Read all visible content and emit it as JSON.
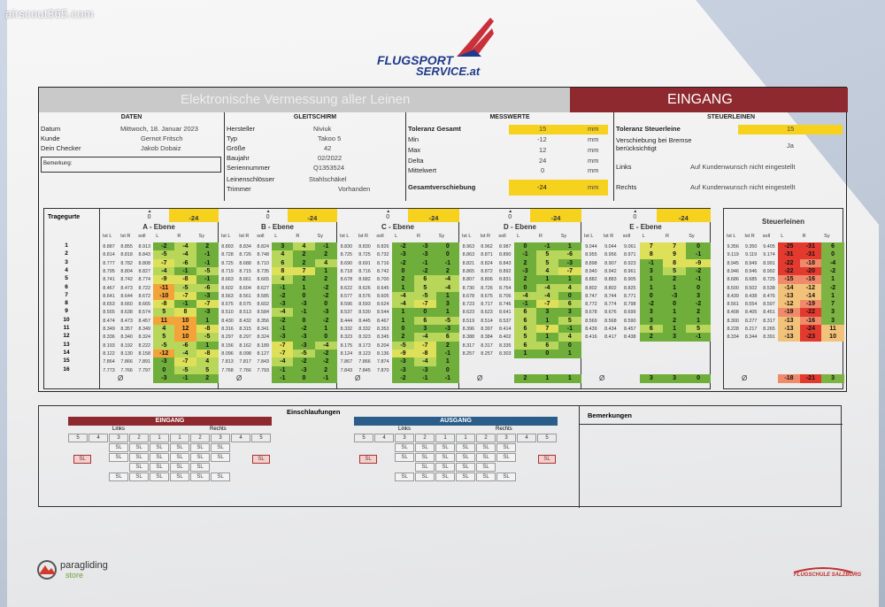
{
  "watermark": "airscout365.com",
  "logo": {
    "line1": "FLUGSPORT",
    "line2": "SERVICE.at"
  },
  "title": {
    "left": "Elektronische Vermessung aller Leinen",
    "right": "EINGANG"
  },
  "daten": {
    "header": "DATEN",
    "datum_label": "Datum",
    "datum": "Mittwoch, 18. Januar 2023",
    "kunde_label": "Kunde",
    "kunde": "Gernot Fritsch",
    "checker_label": "Dein Checker",
    "checker": "Jakob Dobaiz",
    "bemerkung_label": "Bemerkung:"
  },
  "gleitschirm": {
    "header": "GLEITSCHIRM",
    "hersteller_label": "Hersteller",
    "hersteller": "Niviuk",
    "typ_label": "Typ",
    "typ": "Takoo 5",
    "groesse_label": "Größe",
    "groesse": "42",
    "baujahr_label": "Baujahr",
    "baujahr": "02/2022",
    "serien_label": "Seriennummer",
    "serien": "Q1353524",
    "leinen_label": "Leinenschlösser",
    "leinen": "Stahlschäkel",
    "trimmer_label": "Trimmer",
    "trimmer": "Vorhanden"
  },
  "messwerte": {
    "header": "MESSWERTE",
    "toleranz_label": "Toleranz Gesamt",
    "toleranz": "15",
    "unit": "mm",
    "min_label": "Min",
    "min": "-12",
    "max_label": "Max",
    "max": "12",
    "delta_label": "Delta",
    "delta": "24",
    "mittel_label": "Mittelwert",
    "mittel": "0",
    "gesamt_label": "Gesamtverschiebung",
    "gesamt": "-24"
  },
  "steuerleinen_info": {
    "header": "STEUERLEINEN",
    "toleranz_label": "Toleranz Steuerleine",
    "toleranz": "15",
    "verschiebung_label": "Verschiebung bei Bremse berücksichtigt",
    "verschiebung": "Ja",
    "links_label": "Links",
    "links": "Auf Kundenwunsch nicht eingestellt",
    "rechts_label": "Rechts",
    "rechts": "Auf Kundenwunsch nicht eingestellt"
  },
  "tragegurte_label": "Tragegurte",
  "sub_headers": [
    "Ist L",
    "Ist R",
    "soll",
    "L",
    "R",
    "Sy"
  ],
  "ebenen": [
    {
      "name": "A - Ebene",
      "top_zero": "0",
      "top_val": "-24",
      "sum": [
        "-3",
        "-1",
        "2"
      ],
      "rows": [
        [
          "8.887",
          "8.855",
          "8.913",
          "-2",
          "-4",
          "2"
        ],
        [
          "8.814",
          "8.818",
          "8.843",
          "-5",
          "-4",
          "-1"
        ],
        [
          "8.777",
          "8.782",
          "8.808",
          "-7",
          "-6",
          "-1"
        ],
        [
          "8.795",
          "8.804",
          "8.827",
          "-4",
          "-1",
          "-5"
        ],
        [
          "8.741",
          "8.742",
          "8.774",
          "-9",
          "-8",
          "-1"
        ],
        [
          "8.467",
          "8.473",
          "8.722",
          "-11",
          "-5",
          "-6"
        ],
        [
          "8.641",
          "8.644",
          "8.672",
          "-10",
          "-7",
          "-3"
        ],
        [
          "8.653",
          "8.660",
          "8.665",
          "-8",
          "-1",
          "-7"
        ],
        [
          "8.555",
          "8.638",
          "8.574",
          "5",
          "8",
          "-3"
        ],
        [
          "8.474",
          "8.473",
          "8.457",
          "11",
          "10",
          "1"
        ],
        [
          "8.349",
          "8.357",
          "8.349",
          "4",
          "12",
          "-8"
        ],
        [
          "8.336",
          "8.340",
          "8.324",
          "5",
          "10",
          "-5"
        ],
        [
          "8.193",
          "8.192",
          "8.222",
          "-5",
          "-6",
          "1"
        ],
        [
          "8.122",
          "8.130",
          "8.158",
          "-12",
          "-4",
          "-8"
        ],
        [
          "7.864",
          "7.866",
          "7.891",
          "-3",
          "-7",
          "4"
        ],
        [
          "7.773",
          "7.766",
          "7.797",
          "0",
          "-5",
          "5"
        ]
      ]
    },
    {
      "name": "B - Ebene",
      "top_zero": "0",
      "top_val": "-24",
      "sum": [
        "-1",
        "0",
        "-1"
      ],
      "rows": [
        [
          "8.893",
          "8.834",
          "8.824",
          "3",
          "4",
          "-1"
        ],
        [
          "8.728",
          "8.726",
          "8.748",
          "4",
          "2",
          "2"
        ],
        [
          "8.725",
          "8.688",
          "8.710",
          "6",
          "2",
          "4"
        ],
        [
          "8.719",
          "8.715",
          "8.735",
          "8",
          "7",
          "1"
        ],
        [
          "8.663",
          "8.661",
          "8.665",
          "4",
          "2",
          "2"
        ],
        [
          "8.602",
          "8.604",
          "8.627",
          "-1",
          "1",
          "-2"
        ],
        [
          "8.563",
          "8.561",
          "8.585",
          "-2",
          "0",
          "-2"
        ],
        [
          "8.575",
          "8.575",
          "8.602",
          "-3",
          "-3",
          "0"
        ],
        [
          "8.510",
          "8.513",
          "8.584",
          "-4",
          "-1",
          "-3"
        ],
        [
          "8.430",
          "8.432",
          "8.356",
          "-2",
          "0",
          "-2"
        ],
        [
          "8.316",
          "8.315",
          "8.341",
          "-1",
          "-2",
          "1"
        ],
        [
          "8.297",
          "8.297",
          "8.324",
          "-3",
          "-3",
          "0"
        ],
        [
          "8.156",
          "8.162",
          "8.189",
          "-7",
          "-3",
          "-4"
        ],
        [
          "8.096",
          "8.098",
          "8.127",
          "-7",
          "-5",
          "-2"
        ],
        [
          "7.813",
          "7.817",
          "7.843",
          "-4",
          "-2",
          "-2"
        ],
        [
          "7.768",
          "7.766",
          "7.793",
          "-1",
          "-3",
          "2"
        ]
      ]
    },
    {
      "name": "C - Ebene",
      "top_zero": "0",
      "top_val": "-24",
      "sum": [
        "-2",
        "-1",
        "-1"
      ],
      "rows": [
        [
          "8.830",
          "8.830",
          "8.826",
          "-2",
          "-3",
          "0"
        ],
        [
          "8.725",
          "8.725",
          "8.732",
          "-3",
          "-3",
          "0"
        ],
        [
          "8.690",
          "8.691",
          "8.716",
          "-2",
          "-1",
          "-1"
        ],
        [
          "8.718",
          "8.716",
          "8.742",
          "0",
          "-2",
          "2"
        ],
        [
          "8.678",
          "8.682",
          "8.700",
          "2",
          "6",
          "-4"
        ],
        [
          "8.622",
          "8.626",
          "8.645",
          "1",
          "5",
          "-4"
        ],
        [
          "8.577",
          "8.576",
          "8.605",
          "-4",
          "-5",
          "1"
        ],
        [
          "8.596",
          "8.593",
          "8.624",
          "-4",
          "-7",
          "3"
        ],
        [
          "8.537",
          "8.530",
          "8.544",
          "1",
          "0",
          "1"
        ],
        [
          "8.444",
          "8.445",
          "8.467",
          "1",
          "6",
          "-5"
        ],
        [
          "8.332",
          "8.332",
          "8.353",
          "0",
          "3",
          "-3"
        ],
        [
          "8.323",
          "8.323",
          "8.345",
          "2",
          "-4",
          "6"
        ],
        [
          "8.175",
          "8.173",
          "8.204",
          "-5",
          "-7",
          "2"
        ],
        [
          "8.124",
          "8.123",
          "8.136",
          "-9",
          "-8",
          "-1"
        ],
        [
          "7.867",
          "7.866",
          "7.874",
          "-3",
          "-4",
          "1"
        ],
        [
          "7.843",
          "7.845",
          "7.870",
          "-3",
          "-3",
          "0"
        ]
      ]
    },
    {
      "name": "D - Ebene",
      "top_zero": "0",
      "top_val": "-24",
      "sum": [
        "2",
        "1",
        "1"
      ],
      "rows": [
        [
          "8.963",
          "8.962",
          "8.987",
          "0",
          "-1",
          "1"
        ],
        [
          "8.863",
          "8.871",
          "8.890",
          "-1",
          "5",
          "-6"
        ],
        [
          "8.821",
          "8.824",
          "8.843",
          "2",
          "5",
          "-3"
        ],
        [
          "8.865",
          "8.872",
          "8.892",
          "-3",
          "4",
          "-7"
        ],
        [
          "8.807",
          "8.806",
          "8.831",
          "2",
          "1",
          "1"
        ],
        [
          "8.730",
          "8.726",
          "8.754",
          "0",
          "-4",
          "4"
        ],
        [
          "8.678",
          "8.675",
          "8.706",
          "-4",
          "-4",
          "0"
        ],
        [
          "8.723",
          "8.717",
          "8.746",
          "-1",
          "-7",
          "6"
        ],
        [
          "8.623",
          "8.623",
          "8.641",
          "6",
          "3",
          "3"
        ],
        [
          "8.519",
          "8.514",
          "8.537",
          "6",
          "1",
          "5"
        ],
        [
          "8.396",
          "8.397",
          "8.414",
          "6",
          "7",
          "-1"
        ],
        [
          "8.388",
          "8.384",
          "8.402",
          "5",
          "1",
          "4"
        ],
        [
          "8.317",
          "8.317",
          "8.335",
          "6",
          "6",
          "0"
        ],
        [
          "8.257",
          "8.257",
          "8.303",
          "1",
          "0",
          "1"
        ],
        [
          "",
          "",
          "",
          "",
          "",
          ""
        ],
        [
          "",
          "",
          "",
          "",
          "",
          ""
        ]
      ]
    },
    {
      "name": "E - Ebene",
      "top_zero": "0",
      "top_val": "-24",
      "sum": [
        "3",
        "3",
        "0"
      ],
      "rows": [
        [
          "9.044",
          "9.044",
          "9.061",
          "7",
          "7",
          "0"
        ],
        [
          "8.955",
          "8.956",
          "8.971",
          "8",
          "9",
          "-1"
        ],
        [
          "8.898",
          "8.907",
          "8.923",
          "-1",
          "8",
          "-9"
        ],
        [
          "8.940",
          "8.942",
          "8.961",
          "3",
          "5",
          "-2"
        ],
        [
          "8.882",
          "8.883",
          "8.905",
          "1",
          "2",
          "-1"
        ],
        [
          "8.802",
          "8.802",
          "8.825",
          "1",
          "1",
          "0"
        ],
        [
          "8.747",
          "8.744",
          "8.771",
          "0",
          "-3",
          "3"
        ],
        [
          "8.772",
          "8.774",
          "8.798",
          "-2",
          "0",
          "-2"
        ],
        [
          "8.678",
          "8.676",
          "8.699",
          "3",
          "1",
          "2"
        ],
        [
          "8.569",
          "8.568",
          "8.590",
          "3",
          "2",
          "1"
        ],
        [
          "8.439",
          "8.434",
          "8.457",
          "6",
          "1",
          "5"
        ],
        [
          "8.416",
          "8.417",
          "8.438",
          "2",
          "3",
          "-1"
        ],
        [
          "",
          "",
          "",
          "",
          "",
          ""
        ],
        [
          "",
          "",
          "",
          "",
          "",
          ""
        ],
        [
          "",
          "",
          "",
          "",
          "",
          ""
        ],
        [
          "",
          "",
          "",
          "",
          "",
          ""
        ]
      ]
    }
  ],
  "steuerleinen_table": {
    "title": "Steuerleinen",
    "sum": [
      "-18",
      "-21",
      "3"
    ],
    "rows": [
      [
        "9.356",
        "9.350",
        "9.405",
        "-25",
        "-31",
        "6"
      ],
      [
        "9.119",
        "9.119",
        "9.174",
        "-31",
        "-31",
        "0"
      ],
      [
        "8.945",
        "8.949",
        "8.991",
        "-22",
        "-18",
        "-4"
      ],
      [
        "8.946",
        "8.946",
        "8.992",
        "-22",
        "-20",
        "-2"
      ],
      [
        "8.686",
        "8.685",
        "8.725",
        "-15",
        "-16",
        "1"
      ],
      [
        "8.500",
        "8.502",
        "8.538",
        "-14",
        "-12",
        "-2"
      ],
      [
        "8.439",
        "8.438",
        "8.476",
        "-13",
        "-14",
        "1"
      ],
      [
        "8.561",
        "8.554",
        "8.597",
        "-12",
        "-19",
        "7"
      ],
      [
        "8.408",
        "8.405",
        "8.451",
        "-19",
        "-22",
        "3"
      ],
      [
        "8.300",
        "8.277",
        "8.317",
        "-13",
        "-16",
        "3"
      ],
      [
        "8.228",
        "8.217",
        "8.265",
        "-13",
        "-24",
        "11"
      ],
      [
        "8.334",
        "8.344",
        "8.391",
        "-13",
        "-23",
        "10"
      ],
      [
        "",
        "",
        "",
        "",
        "",
        ""
      ],
      [
        "",
        "",
        "",
        "",
        "",
        ""
      ],
      [
        "",
        "",
        "",
        "",
        "",
        ""
      ],
      [
        "",
        "",
        "",
        "",
        "",
        ""
      ]
    ]
  },
  "row_numbers": [
    "1",
    "2",
    "3",
    "4",
    "5",
    "6",
    "7",
    "8",
    "9",
    "10",
    "11",
    "12",
    "13",
    "14",
    "15",
    "16"
  ],
  "omega": "Ø",
  "einschlaufungen": {
    "title": "Einschlaufungen",
    "eingang": "EINGANG",
    "ausgang": "AUSGANG",
    "links": "Links",
    "rechts": "Rechts",
    "nums": [
      "5",
      "4",
      "3",
      "2",
      "1",
      "1",
      "2",
      "3",
      "4",
      "5"
    ],
    "sl": "SL"
  },
  "bemerkungen": "Bemerkungen",
  "footer": {
    "left_a": "paragliding",
    "left_b": "store",
    "right": "FLUGSCHULE SALZBURG"
  },
  "colors": {
    "accent_red": "#8e2a2f",
    "yellow": "#f6d21f",
    "green": "#6fae3a",
    "red": "#e03a2e"
  }
}
